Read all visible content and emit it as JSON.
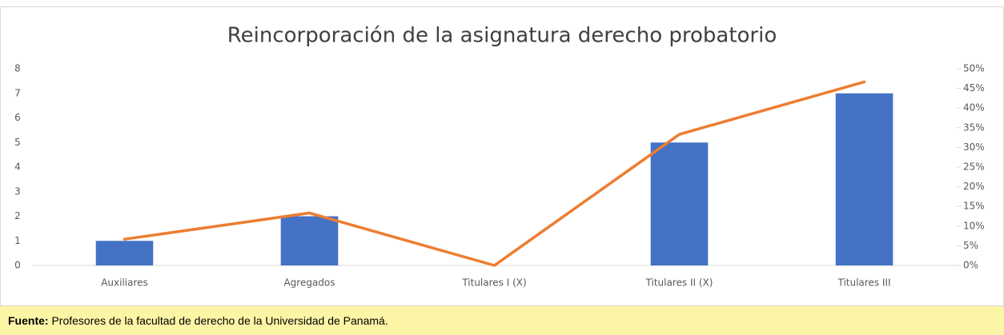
{
  "chart_data": {
    "type": "bar",
    "title": "Reincorporación de la asignatura derecho probatorio",
    "categories": [
      "Auxiliares",
      "Agregados",
      "Titulares I (X)",
      "Titulares II (X)",
      "Titulares III"
    ],
    "series": [
      {
        "type": "bar",
        "color": "#4472c4",
        "values": [
          1,
          2,
          0,
          5,
          7
        ]
      },
      {
        "type": "line",
        "axis": "y2",
        "color": "#ed7d31",
        "values": [
          6.67,
          13.33,
          0,
          33.33,
          46.67
        ]
      }
    ],
    "ylim": [
      0,
      8
    ],
    "yticks": [
      0,
      1,
      2,
      3,
      4,
      5,
      6,
      7,
      8
    ],
    "y2lim": [
      0,
      50
    ],
    "y2ticks": [
      {
        "value": 0,
        "label": "0%"
      },
      {
        "value": 5,
        "label": "5%"
      },
      {
        "value": 10,
        "label": "10%"
      },
      {
        "value": 15,
        "label": "15%"
      },
      {
        "value": 20,
        "label": "20%"
      },
      {
        "value": 25,
        "label": "25%"
      },
      {
        "value": 30,
        "label": "30%"
      },
      {
        "value": 35,
        "label": "35%"
      },
      {
        "value": 40,
        "label": "40%"
      },
      {
        "value": 45,
        "label": "45%"
      },
      {
        "value": 50,
        "label": "50%"
      }
    ],
    "grid": false
  },
  "footer": {
    "label": "Fuente:",
    "text": "Profesores de la facultad de derecho de la Universidad de Panamá."
  }
}
